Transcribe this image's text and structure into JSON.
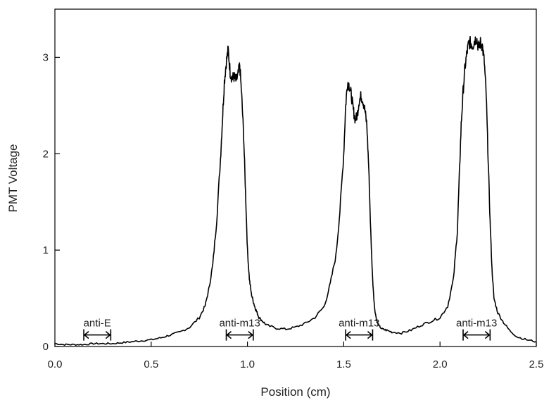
{
  "chart_data": {
    "type": "line",
    "title": "",
    "xlabel": "Position (cm)",
    "ylabel": "PMT Voltage",
    "xlim": [
      0.0,
      2.5
    ],
    "ylim": [
      0,
      3.5
    ],
    "xticks": [
      0.0,
      0.5,
      1.0,
      1.5,
      2.0,
      2.5
    ],
    "xtick_labels": [
      "0.0",
      "0.5",
      "1.0",
      "1.5",
      "2.0",
      "2.5"
    ],
    "yticks": [
      0,
      1,
      2,
      3
    ],
    "ytick_labels": [
      "0",
      "1",
      "2",
      "3"
    ],
    "grid": false,
    "legend": "none",
    "line_color": "#000000",
    "series": [
      {
        "x": [
          0.0,
          0.05,
          0.1,
          0.15,
          0.2,
          0.25,
          0.3,
          0.35,
          0.4,
          0.45,
          0.5,
          0.55,
          0.6,
          0.65,
          0.7,
          0.75,
          0.78,
          0.8,
          0.82,
          0.84,
          0.86,
          0.87,
          0.88,
          0.89,
          0.9,
          0.91,
          0.92,
          0.93,
          0.94,
          0.95,
          0.96,
          0.97,
          0.98,
          0.99,
          1.0,
          1.01,
          1.02,
          1.03,
          1.04,
          1.05,
          1.06,
          1.08,
          1.1,
          1.15,
          1.2,
          1.25,
          1.3,
          1.35,
          1.4,
          1.43,
          1.46,
          1.48,
          1.5,
          1.51,
          1.52,
          1.53,
          1.54,
          1.55,
          1.56,
          1.57,
          1.58,
          1.59,
          1.6,
          1.61,
          1.62,
          1.63,
          1.64,
          1.65,
          1.66,
          1.67,
          1.68,
          1.7,
          1.72,
          1.75,
          1.8,
          1.85,
          1.9,
          1.95,
          2.0,
          2.04,
          2.07,
          2.09,
          2.1,
          2.11,
          2.12,
          2.13,
          2.14,
          2.15,
          2.16,
          2.17,
          2.18,
          2.19,
          2.2,
          2.21,
          2.22,
          2.23,
          2.24,
          2.25,
          2.26,
          2.27,
          2.28,
          2.3,
          2.33,
          2.36,
          2.4,
          2.45,
          2.5
        ],
        "y": [
          0.03,
          0.02,
          0.02,
          0.02,
          0.03,
          0.03,
          0.03,
          0.04,
          0.05,
          0.06,
          0.07,
          0.09,
          0.12,
          0.15,
          0.2,
          0.3,
          0.42,
          0.6,
          0.85,
          1.3,
          1.95,
          2.35,
          2.75,
          2.95,
          3.08,
          2.85,
          2.78,
          2.8,
          2.76,
          2.8,
          2.92,
          2.6,
          2.2,
          1.6,
          1.0,
          0.7,
          0.55,
          0.47,
          0.4,
          0.35,
          0.3,
          0.26,
          0.22,
          0.19,
          0.18,
          0.2,
          0.24,
          0.3,
          0.42,
          0.65,
          0.95,
          1.4,
          2.0,
          2.5,
          2.75,
          2.7,
          2.6,
          2.45,
          2.35,
          2.4,
          2.55,
          2.6,
          2.55,
          2.45,
          2.3,
          1.85,
          1.2,
          0.7,
          0.4,
          0.28,
          0.22,
          0.18,
          0.17,
          0.15,
          0.14,
          0.17,
          0.22,
          0.26,
          0.3,
          0.42,
          0.7,
          1.2,
          1.75,
          2.3,
          2.65,
          2.9,
          3.05,
          3.15,
          3.15,
          3.12,
          3.18,
          3.2,
          3.1,
          3.15,
          3.12,
          2.95,
          2.6,
          1.95,
          1.3,
          0.8,
          0.5,
          0.35,
          0.25,
          0.17,
          0.1,
          0.07,
          0.05
        ]
      }
    ],
    "annotations": [
      {
        "label": "anti-E",
        "x_start": 0.15,
        "x_end": 0.29,
        "y": 0.12,
        "label_y": 0.21
      },
      {
        "label": "anti-m13",
        "x_start": 0.89,
        "x_end": 1.03,
        "y": 0.12,
        "label_y": 0.21
      },
      {
        "label": "anti-m13",
        "x_start": 1.51,
        "x_end": 1.65,
        "y": 0.12,
        "label_y": 0.21
      },
      {
        "label": "anti-m13",
        "x_start": 2.12,
        "x_end": 2.26,
        "y": 0.12,
        "label_y": 0.21
      }
    ]
  }
}
